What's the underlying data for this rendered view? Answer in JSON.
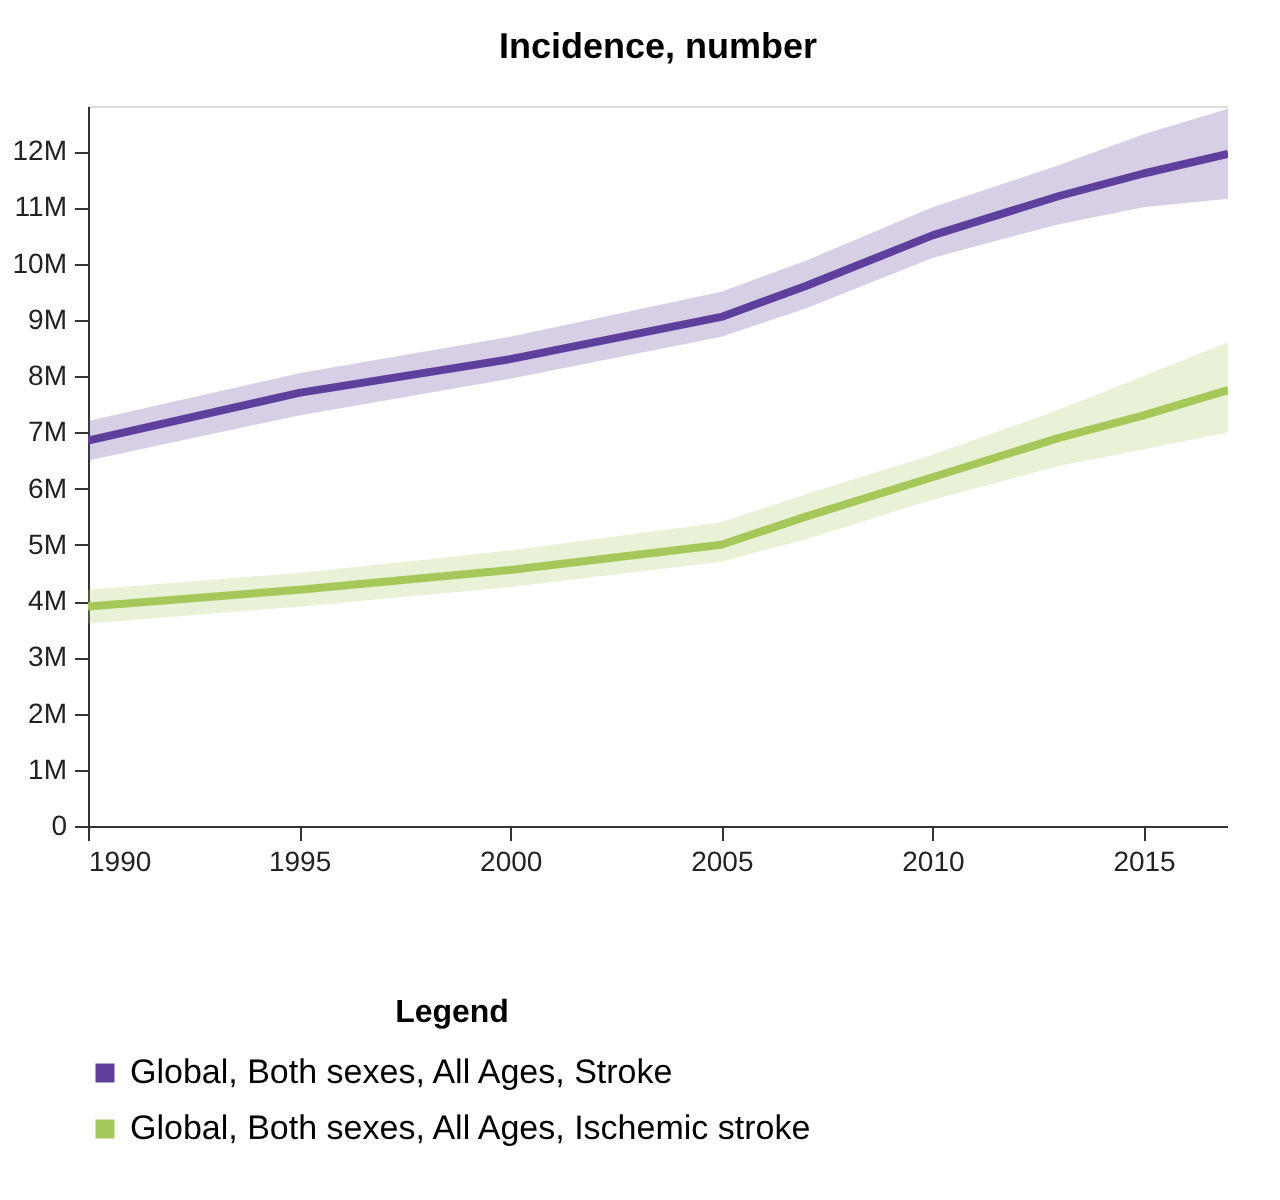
{
  "chart_data": {
    "type": "line",
    "title": "Incidence, number",
    "legend_title": "Legend",
    "legend": "bottom",
    "grid": false,
    "marker": "none",
    "line_style": "solid",
    "x": [
      1990,
      1995,
      2000,
      2005,
      2007,
      2010,
      2013,
      2015,
      2017
    ],
    "xlim": [
      1990,
      2017
    ],
    "xticks": [
      1990,
      1995,
      2000,
      2005,
      2010,
      2015
    ],
    "ylim": [
      0,
      12800000
    ],
    "yticks": [
      {
        "value": 0,
        "label": "0"
      },
      {
        "value": 1000000,
        "label": "1M"
      },
      {
        "value": 2000000,
        "label": "2M"
      },
      {
        "value": 3000000,
        "label": "3M"
      },
      {
        "value": 4000000,
        "label": "4M"
      },
      {
        "value": 5000000,
        "label": "5M"
      },
      {
        "value": 6000000,
        "label": "6M"
      },
      {
        "value": 7000000,
        "label": "7M"
      },
      {
        "value": 8000000,
        "label": "8M"
      },
      {
        "value": 9000000,
        "label": "9M"
      },
      {
        "value": 10000000,
        "label": "10M"
      },
      {
        "value": 11000000,
        "label": "11M"
      },
      {
        "value": 12000000,
        "label": "12M"
      }
    ],
    "series": [
      {
        "name": "Global, Both sexes, All Ages, Stroke",
        "color": "#5e3f9c",
        "values": [
          6850000,
          7700000,
          8300000,
          9050000,
          9600000,
          10500000,
          11200000,
          11600000,
          11950000
        ],
        "lower": [
          6500000,
          7300000,
          7950000,
          8700000,
          9200000,
          10100000,
          10700000,
          11000000,
          11150000
        ],
        "upper": [
          7200000,
          8050000,
          8700000,
          9500000,
          10050000,
          11000000,
          11750000,
          12300000,
          12750000
        ]
      },
      {
        "name": "Global, Both sexes, All Ages, Ischemic stroke",
        "color": "#a6c85a",
        "values": [
          3900000,
          4200000,
          4550000,
          5000000,
          5500000,
          6200000,
          6900000,
          7300000,
          7750000
        ],
        "lower": [
          3600000,
          3900000,
          4250000,
          4700000,
          5100000,
          5800000,
          6400000,
          6700000,
          7000000
        ],
        "upper": [
          4200000,
          4500000,
          4900000,
          5400000,
          5900000,
          6600000,
          7400000,
          8000000,
          8600000
        ]
      }
    ]
  }
}
